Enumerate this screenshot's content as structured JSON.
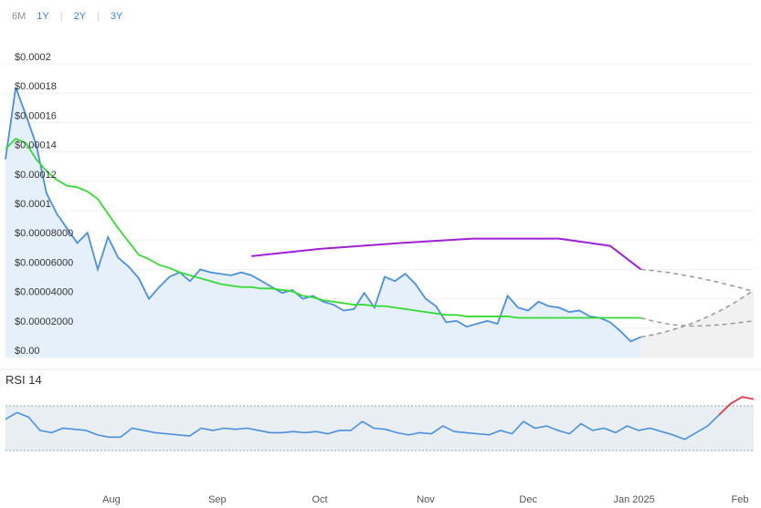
{
  "range_tabs": [
    {
      "label": "6M",
      "active": true
    },
    {
      "label": "1Y",
      "active": false
    },
    {
      "label": "2Y",
      "active": false
    },
    {
      "label": "3Y",
      "active": false
    }
  ],
  "colors": {
    "price": "#4a8fe0",
    "ma_green": "#34d934",
    "ma_purple": "#a020d8",
    "forecast": "#999999",
    "rsi_line": "#4a8fe0",
    "rsi_extreme": "#e0404f",
    "rsi_band": "#e8eef2"
  },
  "chart_data": [
    {
      "type": "area",
      "x": [
        "2024-07-01",
        "2024-07-04",
        "2024-07-07",
        "2024-07-10",
        "2024-07-13",
        "2024-07-16",
        "2024-07-19",
        "2024-07-22",
        "2024-07-25",
        "2024-07-28",
        "2024-07-31",
        "2024-08-03",
        "2024-08-06",
        "2024-08-09",
        "2024-08-12",
        "2024-08-15",
        "2024-08-18",
        "2024-08-21",
        "2024-08-24",
        "2024-08-27",
        "2024-08-30",
        "2024-09-02",
        "2024-09-05",
        "2024-09-08",
        "2024-09-11",
        "2024-09-14",
        "2024-09-17",
        "2024-09-20",
        "2024-09-23",
        "2024-09-26",
        "2024-09-29",
        "2024-10-02",
        "2024-10-05",
        "2024-10-08",
        "2024-10-11",
        "2024-10-14",
        "2024-10-17",
        "2024-10-20",
        "2024-10-23",
        "2024-10-26",
        "2024-10-29",
        "2024-11-01",
        "2024-11-04",
        "2024-11-07",
        "2024-11-10",
        "2024-11-13",
        "2024-11-16",
        "2024-11-19",
        "2024-11-22",
        "2024-11-25",
        "2024-11-28",
        "2024-12-01",
        "2024-12-04",
        "2024-12-07",
        "2024-12-10",
        "2024-12-13",
        "2024-12-16",
        "2024-12-19",
        "2024-12-22",
        "2024-12-25",
        "2024-12-28",
        "2024-12-31",
        "2025-01-03"
      ],
      "series": [
        {
          "values": [
            0.000135,
            0.000184,
            0.000165,
            0.000145,
            0.000112,
            9.8e-05,
            8.8e-05,
            7.8e-05,
            8.5e-05,
            6e-05,
            8.2e-05,
            6.8e-05,
            6.2e-05,
            5.4e-05,
            4e-05,
            4.8e-05,
            5.5e-05,
            5.8e-05,
            5.2e-05,
            6e-05,
            5.8e-05,
            5.7e-05,
            5.6e-05,
            5.8e-05,
            5.6e-05,
            5.2e-05,
            4.8e-05,
            4.4e-05,
            4.6e-05,
            4e-05,
            4.2e-05,
            3.8e-05,
            3.6e-05,
            3.2e-05,
            3.3e-05,
            4.4e-05,
            3.4e-05,
            5.5e-05,
            5.2e-05,
            5.7e-05,
            5e-05,
            4e-05,
            3.5e-05,
            2.4e-05,
            2.5e-05,
            2.1e-05,
            2.3e-05,
            2.5e-05,
            2.3e-05,
            4.2e-05,
            3.4e-05,
            3.2e-05,
            3.8e-05,
            3.5e-05,
            3.4e-05,
            3.1e-05,
            3.2e-05,
            2.8e-05,
            2.7e-05,
            2.4e-05,
            1.8e-05,
            1.1e-05,
            1.4e-05
          ]
        },
        {
          "values": [
            0.000142,
            0.000149,
            0.000146,
            0.000135,
            0.000127,
            0.000121,
            0.000117,
            0.000116,
            0.000113,
            0.000108,
            9.8e-05,
            8.8e-05,
            7.9e-05,
            7e-05,
            6.7e-05,
            6.3e-05,
            6.1e-05,
            5.8e-05,
            5.6e-05,
            5.4e-05,
            5.2e-05,
            5e-05,
            4.9e-05,
            4.8e-05,
            4.8e-05,
            4.7e-05,
            4.7e-05,
            4.6e-05,
            4.5e-05,
            4.2e-05,
            4.1e-05,
            3.9e-05,
            3.8e-05,
            3.7e-05,
            3.6e-05,
            3.6e-05,
            3.5e-05,
            3.5e-05,
            3.4e-05,
            3.3e-05,
            3.2e-05,
            3.1e-05,
            3e-05,
            2.9e-05,
            2.9e-05,
            2.8e-05,
            2.8e-05,
            2.8e-05,
            2.8e-05,
            2.8e-05,
            2.7e-05,
            2.7e-05,
            2.7e-05,
            2.7e-05,
            2.7e-05,
            2.7e-05,
            2.7e-05,
            2.7e-05,
            2.7e-05,
            2.7e-05,
            2.7e-05,
            2.7e-05,
            2.7e-05
          ]
        }
      ],
      "x_ticks": [
        "Aug",
        "Sep",
        "Oct",
        "Nov",
        "Dec",
        "Jan 2025",
        "Feb"
      ],
      "y_ticks": [
        "$0.00",
        "$0.00002000",
        "$0.00004000",
        "$0.00006000",
        "$0.00008000",
        "$0.0001",
        "$0.00012",
        "$0.00014",
        "$0.00016",
        "$0.00018",
        "$0.0002"
      ],
      "ylim": [
        0,
        0.0002
      ],
      "grid": true
    },
    {
      "type": "line",
      "title": "RSI 14",
      "series": [
        {
          "values": [
            58,
            64,
            60,
            48,
            46,
            50,
            49,
            48,
            44,
            42,
            42,
            50,
            48,
            46,
            45,
            44,
            43,
            50,
            48,
            50,
            49,
            50,
            48,
            46,
            46,
            47,
            46,
            47,
            45,
            48,
            48,
            56,
            50,
            49,
            46,
            44,
            46,
            45,
            52,
            47,
            46,
            45,
            44,
            48,
            45,
            56,
            50,
            52,
            48,
            45,
            54,
            48,
            50,
            46,
            52,
            48,
            50,
            47,
            44,
            40,
            46,
            52,
            62,
            72,
            78,
            76
          ]
        }
      ],
      "note_levels": [
        30,
        70
      ]
    }
  ]
}
